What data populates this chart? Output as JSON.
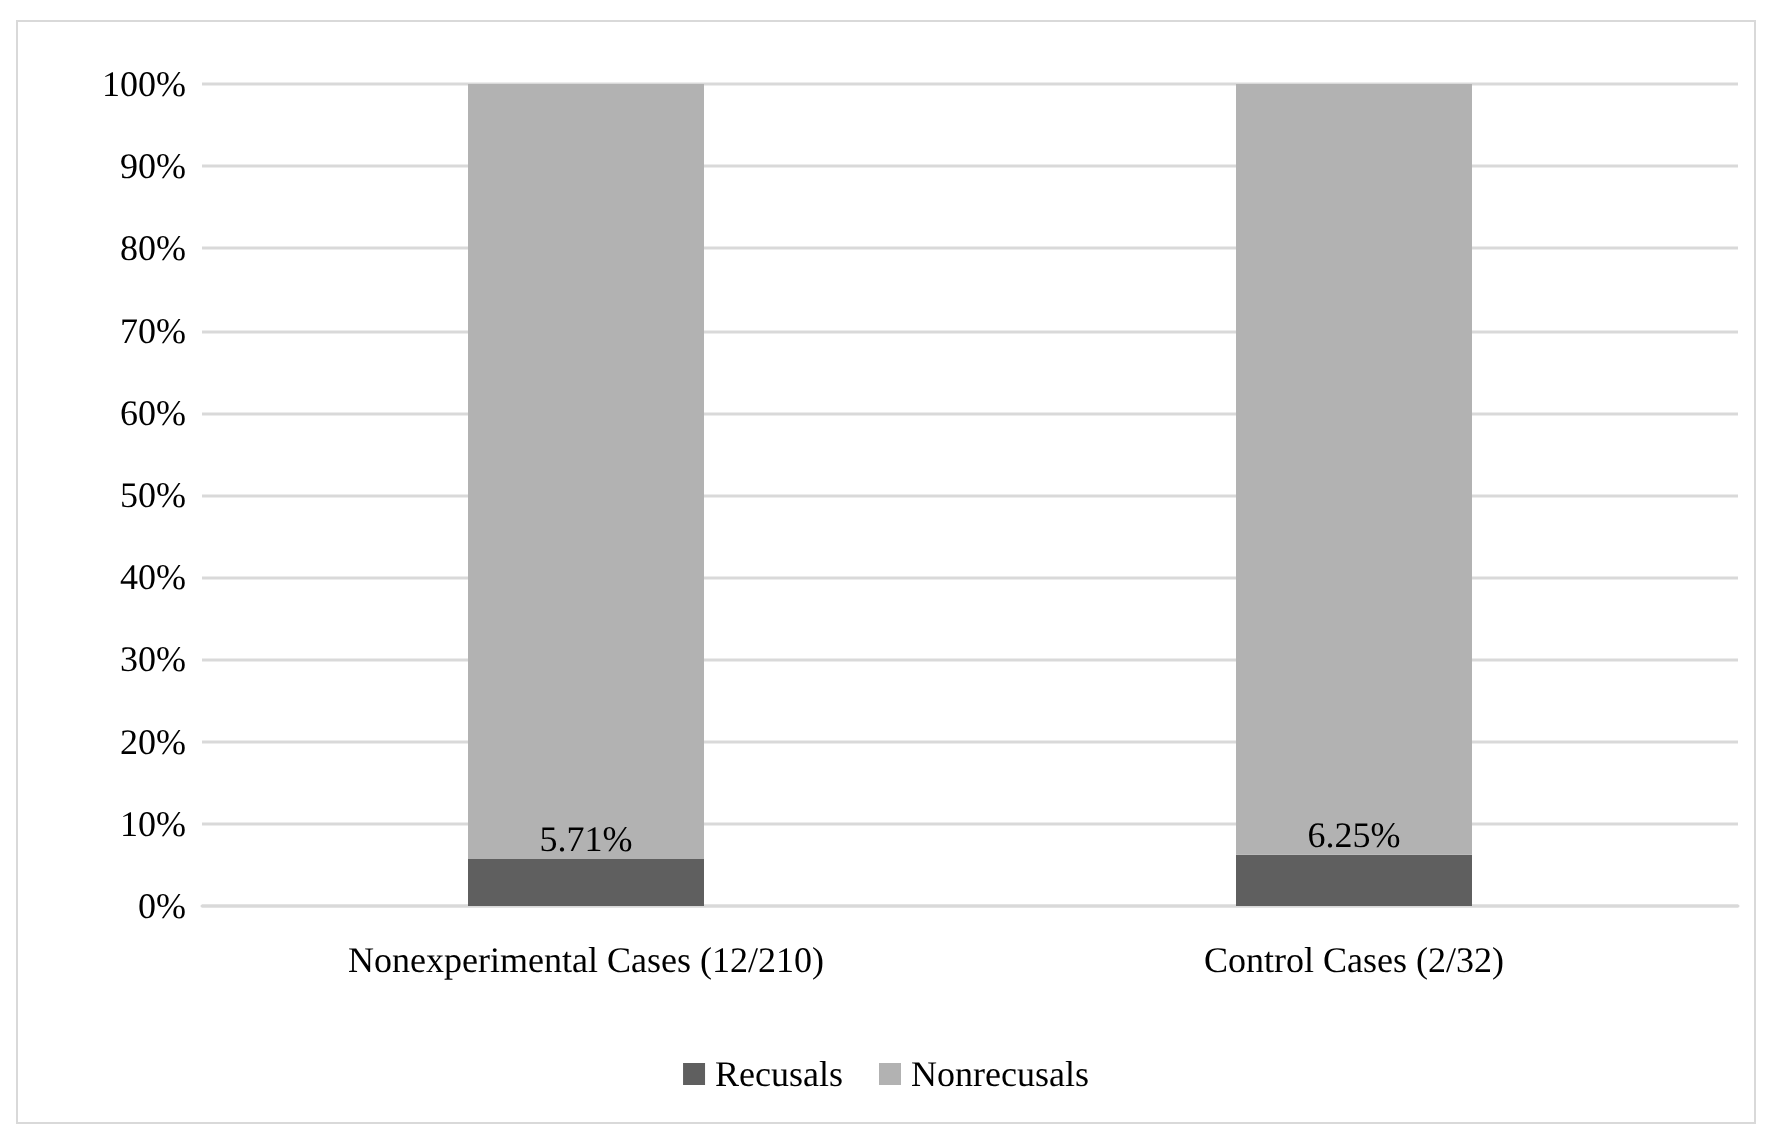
{
  "chart_data": {
    "type": "bar",
    "stacked": true,
    "categories": [
      "Nonexperimental Cases (12/210)",
      "Control Cases (2/32)"
    ],
    "series": [
      {
        "name": "Recusals",
        "color": "#5f5f5f",
        "values": [
          5.71,
          6.25
        ],
        "value_labels": [
          "5.71%",
          "6.25%"
        ]
      },
      {
        "name": "Nonrecusals",
        "color": "#b2b2b2",
        "values": [
          94.29,
          93.75
        ]
      }
    ],
    "ylim": [
      0,
      100
    ],
    "yticks": [
      {
        "value": 0,
        "label": "0%"
      },
      {
        "value": 10,
        "label": "10%"
      },
      {
        "value": 20,
        "label": "20%"
      },
      {
        "value": 30,
        "label": "30%"
      },
      {
        "value": 40,
        "label": "40%"
      },
      {
        "value": 50,
        "label": "50%"
      },
      {
        "value": 60,
        "label": "60%"
      },
      {
        "value": 70,
        "label": "70%"
      },
      {
        "value": 80,
        "label": "80%"
      },
      {
        "value": 90,
        "label": "90%"
      },
      {
        "value": 100,
        "label": "100%"
      }
    ],
    "grid": "y",
    "legend": "bottom"
  }
}
